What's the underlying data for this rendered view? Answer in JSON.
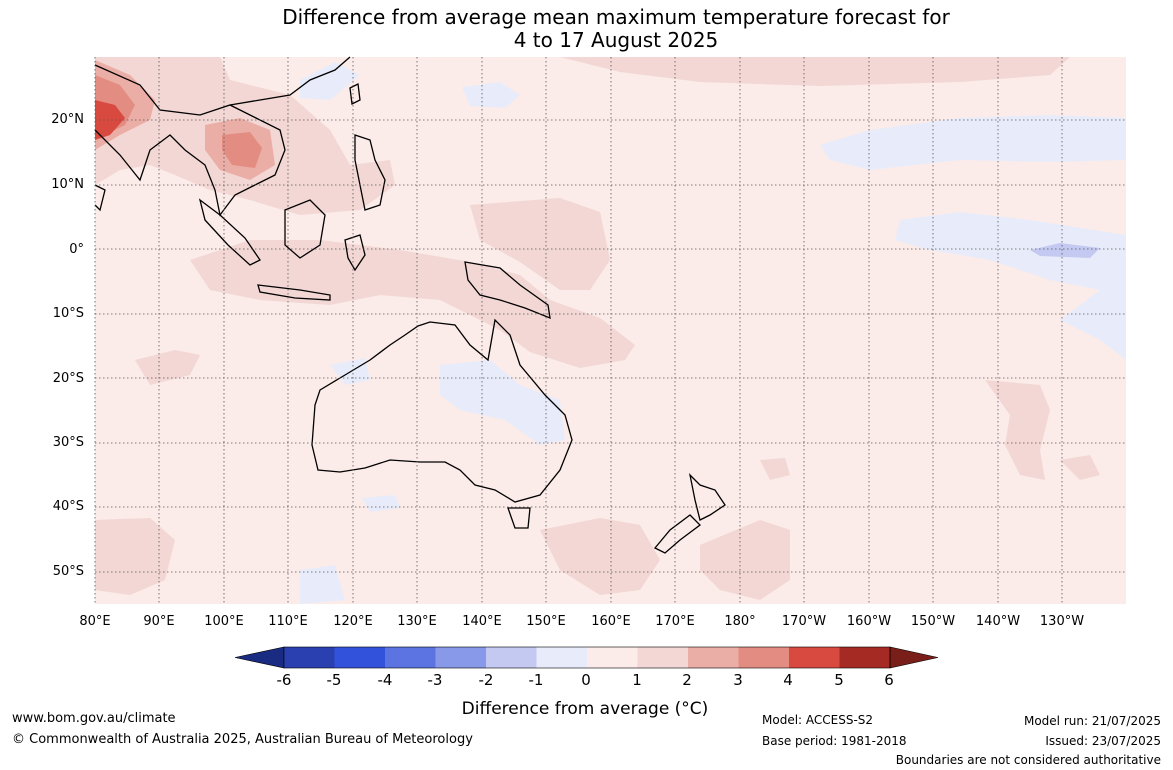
{
  "title_line1": "Difference from average mean maximum temperature forecast for",
  "title_line2": "4 to 17 August 2025",
  "map": {
    "lat_labels": [
      "20°N",
      "10°N",
      "0°",
      "10°S",
      "20°S",
      "30°S",
      "40°S",
      "50°S"
    ],
    "lon_labels": [
      "80°E",
      "90°E",
      "100°E",
      "110°E",
      "120°E",
      "130°E",
      "140°E",
      "150°E",
      "160°E",
      "170°E",
      "180°",
      "170°W",
      "160°W",
      "150°W",
      "140°W",
      "130°W"
    ],
    "colors": {
      "ocean_background": "#fbebe9",
      "warm_0_1": "#fbebe9",
      "warm_1_2": "#f2d7d4",
      "warm_2_3": "#eaaea7",
      "warm_3_4": "#e38d82",
      "warm_4_5": "#d8493f",
      "cool_0_-1": "#e8ecfa",
      "cool_-1_-2": "#c3c9f1",
      "land_outline": "#000000",
      "gridline": "#555555"
    }
  },
  "colorbar": {
    "title": "Difference from average (°C)",
    "tick_labels": [
      "-6",
      "-5",
      "-4",
      "-3",
      "-2",
      "-1",
      "0",
      "1",
      "2",
      "3",
      "4",
      "5",
      "6"
    ],
    "colors": [
      "#1a2b82",
      "#2a3fb0",
      "#3352dc",
      "#5b74e2",
      "#8799e8",
      "#c3c9f1",
      "#e8ecfa",
      "#fbebe9",
      "#f2d7d4",
      "#eaaea7",
      "#e38d82",
      "#d8493f",
      "#a62a24",
      "#7a1e1a"
    ]
  },
  "footer": {
    "website": "www.bom.gov.au/climate",
    "copyright": "© Commonwealth of Australia 2025, Australian Bureau of Meteorology",
    "model": "Model: ACCESS-S2",
    "base_period": "Base period: 1981-2018",
    "model_run": "Model run: 21/07/2025",
    "issued": "Issued: 23/07/2025",
    "boundaries_note": "Boundaries are not considered authoritative"
  }
}
